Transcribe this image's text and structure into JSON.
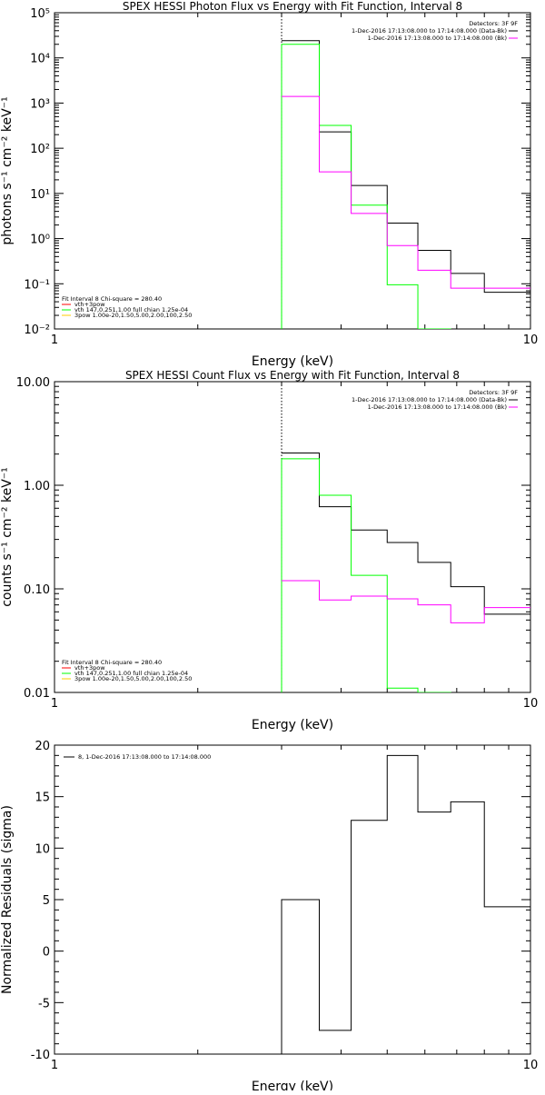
{
  "chart_data": [
    {
      "type": "line",
      "title": "SPEX HESSI Photon Flux vs Energy with Fit Function, Interval 8",
      "xlabel": "Energy (keV)",
      "ylabel": "photons s⁻¹ cm⁻² keV⁻¹",
      "xscale": "log",
      "yscale": "log",
      "xlim": [
        1,
        10
      ],
      "ylim": [
        0.01,
        100000
      ],
      "xticks": [
        1,
        10
      ],
      "xtick_labels": [
        "1",
        "10"
      ],
      "yticks": [
        0.01,
        0.1,
        1,
        10,
        100,
        1000,
        10000,
        100000
      ],
      "ytick_labels": [
        "10⁻²",
        "10⁻¹",
        "10⁰",
        "10¹",
        "10²",
        "10³",
        "10⁴",
        "10⁵"
      ],
      "vline_x": 3,
      "info": {
        "detectors": "Detectors: 3F 9F",
        "line1": "1-Dec-2016 17:13:08.000 to 17:14:08.000 (Data-Bk)",
        "line2": "1-Dec-2016 17:13:08.000 to 17:14:08.000 (Bk)",
        "line1_color": "#000000",
        "line2_color": "#ff00ff"
      },
      "legend_header": "Fit Interval 8    Chi-square = 280.40",
      "legend": [
        {
          "label": "vth+3pow",
          "color": "#ff0000"
        },
        {
          "label": "vth 147,0.251,1.00  full chian 1.25e-04",
          "color": "#00ff00"
        },
        {
          "label": "3pow 1.00e-20,1.50,5.00,2.00,100,2.50",
          "color": "#ffcc00"
        }
      ],
      "series": [
        {
          "color": "#000000",
          "edges": [
            3,
            3.6,
            4.2,
            5,
            5.8,
            6.8,
            8.0,
            9.2,
            10
          ],
          "values": [
            24000,
            230,
            15,
            2.2,
            0.55,
            0.17,
            0.065,
            0.065
          ]
        },
        {
          "color": "#00ff00",
          "edges": [
            3,
            3.6,
            4.2,
            5,
            5.8,
            6.8
          ],
          "values": [
            20000,
            320,
            5.5,
            0.095,
            0.01
          ],
          "drop_to_floor": true
        },
        {
          "color": "#ff00ff",
          "edges": [
            3,
            3.6,
            4.2,
            5,
            5.8,
            6.8,
            8.0,
            9.2,
            10
          ],
          "values": [
            1400,
            30,
            3.6,
            0.7,
            0.2,
            0.08,
            0.08,
            0.08
          ]
        }
      ]
    },
    {
      "type": "line",
      "title": "SPEX HESSI Count Flux vs Energy with Fit Function, Interval 8",
      "xlabel": "Energy (keV)",
      "ylabel": "counts s⁻¹ cm⁻² keV⁻¹",
      "xscale": "log",
      "yscale": "log",
      "xlim": [
        1,
        10
      ],
      "ylim": [
        0.01,
        10
      ],
      "xticks": [
        1,
        10
      ],
      "xtick_labels": [
        "1",
        "10"
      ],
      "yticks": [
        0.01,
        0.1,
        1,
        10
      ],
      "ytick_labels": [
        "0.01",
        "0.10",
        "1.00",
        "10.00"
      ],
      "vline_x": 3,
      "info": {
        "detectors": "Detectors: 3F 9F",
        "line1": "1-Dec-2016 17:13:08.000 to 17:14:08.000 (Data-Bk)",
        "line2": "1-Dec-2016 17:13:08.000 to 17:14:08.000 (Bk)",
        "line1_color": "#000000",
        "line2_color": "#ff00ff"
      },
      "legend_header": "Fit Interval 8    Chi-square = 280.40",
      "legend": [
        {
          "label": "vth+3pow",
          "color": "#ff0000"
        },
        {
          "label": "vth 147,0.251,1.00  full chian 1.25e-04",
          "color": "#00ff00"
        },
        {
          "label": "3pow 1.00e-20,1.50,5.00,2.00,100,2.50",
          "color": "#ffcc00"
        }
      ],
      "series": [
        {
          "color": "#000000",
          "edges": [
            3,
            3.6,
            4.2,
            5,
            5.8,
            6.8,
            8.0,
            9.2,
            10
          ],
          "values": [
            2.05,
            0.62,
            0.37,
            0.28,
            0.18,
            0.105,
            0.057,
            0.057
          ]
        },
        {
          "color": "#00ff00",
          "edges": [
            3,
            3.6,
            4.2,
            5,
            5.8,
            6.8
          ],
          "values": [
            1.8,
            0.8,
            0.135,
            0.011,
            0.01
          ],
          "drop_to_floor": true
        },
        {
          "color": "#ff00ff",
          "edges": [
            3,
            3.6,
            4.2,
            5,
            5.8,
            6.8,
            8.0,
            9.2,
            10
          ],
          "values": [
            0.12,
            0.078,
            0.085,
            0.08,
            0.07,
            0.047,
            0.066,
            0.066
          ]
        }
      ]
    },
    {
      "type": "line",
      "title": "",
      "xlabel": "Energy (keV)",
      "ylabel": "Normalized Residuals (sigma)",
      "xscale": "log",
      "yscale": "linear",
      "xlim": [
        1,
        10
      ],
      "ylim": [
        -10,
        20
      ],
      "xticks": [
        1,
        10
      ],
      "xtick_labels": [
        "1",
        "10"
      ],
      "yticks": [
        -10,
        -5,
        0,
        5,
        10,
        15,
        20
      ],
      "ytick_labels": [
        "-10",
        "-5",
        "0",
        "5",
        "10",
        "15",
        "20"
      ],
      "legend": [
        {
          "label": "8,  1-Dec-2016 17:13:08.000 to 17:14:08.000",
          "color": "#000000"
        }
      ],
      "series": [
        {
          "color": "#000000",
          "edges": [
            3,
            3.6,
            4.2,
            5,
            5.8,
            6.8,
            8.0,
            9.2,
            10
          ],
          "values": [
            5.0,
            -7.7,
            12.7,
            19.0,
            13.5,
            14.5,
            4.3,
            4.3
          ],
          "start_from_floor": true
        }
      ]
    }
  ]
}
